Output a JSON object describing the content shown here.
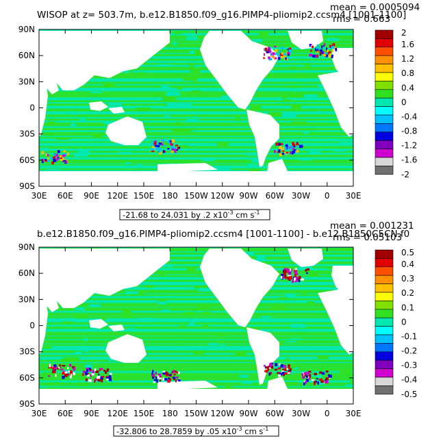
{
  "chart_data": [
    {
      "type": "heatmap",
      "title": "WISOP at z= 503.7m, b.e12.B1850.f09_g16.PIMP4-pliomip2.ccsm4 [1001-1100]",
      "stats": {
        "mean": "mean = 0.0005094",
        "rms": "rms = 0.663"
      },
      "x_ticks": [
        "30E",
        "60E",
        "90E",
        "120E",
        "150E",
        "180",
        "150W",
        "120W",
        "90W",
        "60W",
        "30W",
        "0",
        "30E"
      ],
      "y_ticks": [
        "90N",
        "60N",
        "30N",
        "0",
        "30S",
        "60S",
        "90S"
      ],
      "xlim": [
        30,
        390
      ],
      "ylim": [
        -90,
        90
      ],
      "range_text": "-21.68 to 24.031 by .2 x10",
      "range_exp": "-3",
      "range_units": " cm s",
      "range_units_exp": "-1",
      "colorbar": {
        "levels": [
          "2",
          "1.6",
          "1.2",
          "0.8",
          "0.4",
          "0",
          "-0.4",
          "-0.8",
          "-1.2",
          "-1.6",
          "-2"
        ],
        "colors": [
          "#a00000",
          "#e00000",
          "#ff5000",
          "#ff9000",
          "#ffc000",
          "#ffff00",
          "#80e000",
          "#30e020",
          "#00e8b0",
          "#00ffff",
          "#00c0ff",
          "#0078ff",
          "#0000e0",
          "#8000c0",
          "#d000d0",
          "#d8d8d8",
          "#707070"
        ]
      },
      "field_colors": [
        "#00e8b0",
        "#30e020"
      ],
      "extreme_colors": [
        "#0000e0",
        "#e00000",
        "#d000d0",
        "#00c0ff",
        "#ffc000"
      ]
    },
    {
      "type": "heatmap",
      "title": "b.e12.B1850.f09_g16.PIMP4-pliomip2.ccsm4 [1001-1100] - b.e12.B1850C5CN.f0",
      "stats": {
        "mean": "mean = 0.001231",
        "rms": "rms = 0.05103"
      },
      "x_ticks": [
        "30E",
        "60E",
        "90E",
        "120E",
        "150E",
        "180",
        "150W",
        "120W",
        "90W",
        "60W",
        "30W",
        "0",
        "30E"
      ],
      "y_ticks": [
        "90N",
        "60N",
        "30N",
        "0",
        "30S",
        "60S",
        "90S"
      ],
      "xlim": [
        30,
        390
      ],
      "ylim": [
        -90,
        90
      ],
      "range_text": "-32.806 to 28.7859 by .05 x10",
      "range_exp": "-3",
      "range_units": " cm s",
      "range_units_exp": "-1",
      "colorbar": {
        "levels": [
          "0.5",
          "0.4",
          "0.3",
          "0.2",
          "0.1",
          "0",
          "-0.1",
          "-0.2",
          "-0.3",
          "-0.4",
          "-0.5"
        ],
        "colors": [
          "#a00000",
          "#e00000",
          "#ff5000",
          "#ff9000",
          "#ffc000",
          "#ffff00",
          "#80e000",
          "#30e020",
          "#00e8b0",
          "#00ffff",
          "#00c0ff",
          "#0078ff",
          "#0000e0",
          "#8000c0",
          "#d000d0",
          "#d8d8d8",
          "#707070"
        ]
      },
      "field_colors": [
        "#00e8b0",
        "#30e020"
      ],
      "extreme_colors": [
        "#a00000",
        "#e00000",
        "#0000e0",
        "#d000d0",
        "#ffffff"
      ]
    }
  ]
}
